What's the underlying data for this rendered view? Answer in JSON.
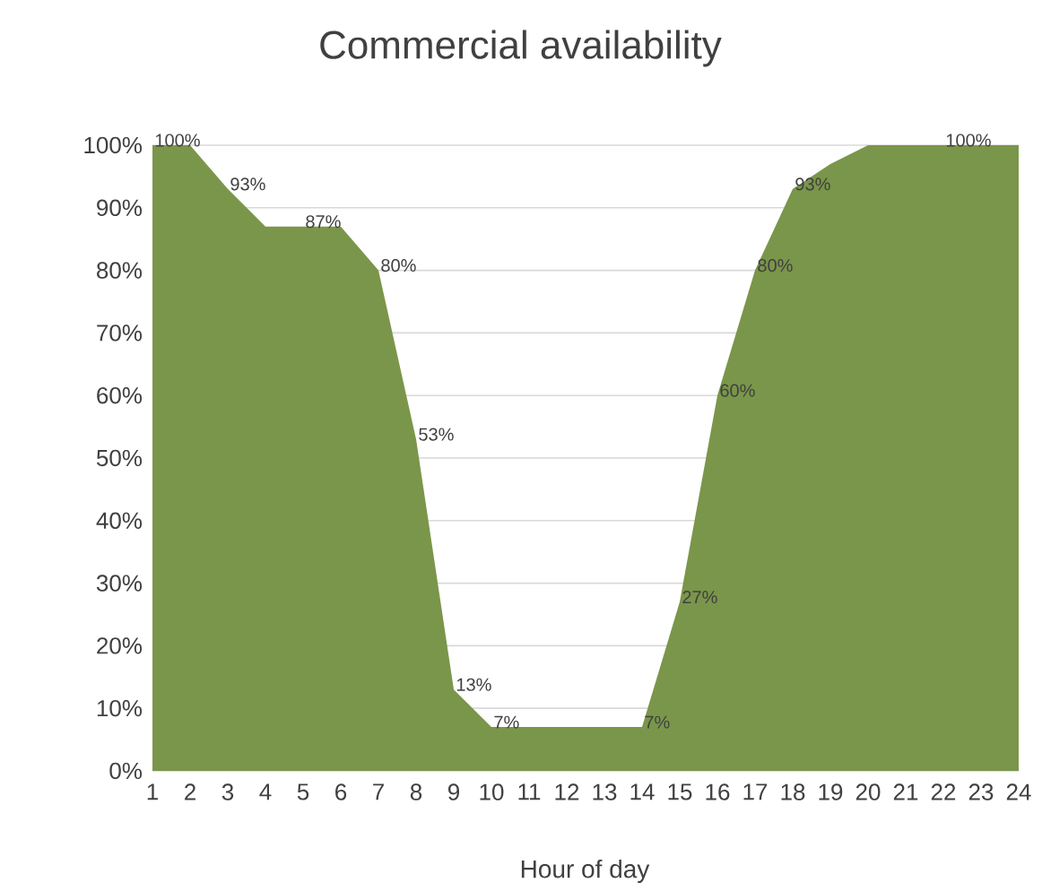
{
  "chart_data": {
    "type": "area",
    "title": "Commercial availability",
    "xlabel": "Hour of day",
    "categories": [
      "1",
      "2",
      "3",
      "4",
      "5",
      "6",
      "7",
      "8",
      "9",
      "10",
      "11",
      "12",
      "13",
      "14",
      "15",
      "16",
      "17",
      "18",
      "19",
      "20",
      "21",
      "22",
      "23",
      "24"
    ],
    "values": [
      100,
      100,
      93,
      87,
      87,
      87,
      80,
      53,
      13,
      7,
      7,
      7,
      7,
      7,
      27,
      60,
      80,
      93,
      97,
      100,
      100,
      100,
      100,
      100
    ],
    "value_labels": [
      "100%",
      null,
      "93%",
      null,
      "87%",
      null,
      "80%",
      "53%",
      "13%",
      "7%",
      null,
      null,
      null,
      "7%",
      "27%",
      "60%",
      "80%",
      "93%",
      null,
      null,
      null,
      "100%",
      null,
      null
    ],
    "color": "#7a964a",
    "ylim": [
      0,
      100
    ],
    "yticks": [
      {
        "value": 0,
        "label": "0%"
      },
      {
        "value": 10,
        "label": "10%"
      },
      {
        "value": 20,
        "label": "20%"
      },
      {
        "value": 30,
        "label": "30%"
      },
      {
        "value": 40,
        "label": "40%"
      },
      {
        "value": 50,
        "label": "50%"
      },
      {
        "value": 60,
        "label": "60%"
      },
      {
        "value": 70,
        "label": "70%"
      },
      {
        "value": 80,
        "label": "80%"
      },
      {
        "value": 90,
        "label": "90%"
      },
      {
        "value": 100,
        "label": "100%"
      }
    ],
    "grid": "y"
  }
}
